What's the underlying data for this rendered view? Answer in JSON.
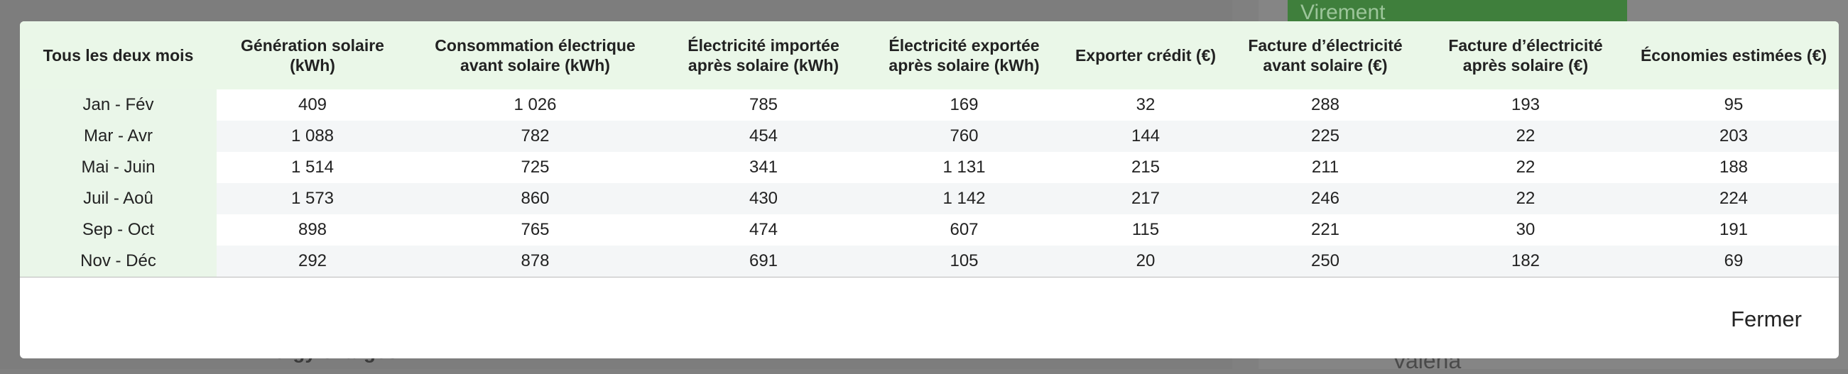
{
  "background": {
    "button": "Virement",
    "section": "Energy charges",
    "user": "Valena"
  },
  "table": {
    "header": [
      "Tous les deux mois",
      "Génération solaire (kWh)",
      "Consommation électrique avant solaire (kWh)",
      "Électricité importée après solaire (kWh)",
      "Électricité exportée après solaire (kWh)",
      "Exporter crédit (€)",
      "Facture d’électricité avant solaire (€)",
      "Facture d’électricité après solaire (€)",
      "Économies estimées (€)"
    ],
    "rows": [
      [
        "Jan - Fév",
        "409",
        "1 026",
        "785",
        "169",
        "32",
        "288",
        "193",
        "95"
      ],
      [
        "Mar - Avr",
        "1 088",
        "782",
        "454",
        "760",
        "144",
        "225",
        "22",
        "203"
      ],
      [
        "Mai - Juin",
        "1 514",
        "725",
        "341",
        "1 131",
        "215",
        "211",
        "22",
        "188"
      ],
      [
        "Juil - Aoû",
        "1 573",
        "860",
        "430",
        "1 142",
        "217",
        "246",
        "22",
        "224"
      ],
      [
        "Sep - Oct",
        "898",
        "765",
        "474",
        "607",
        "115",
        "221",
        "30",
        "191"
      ],
      [
        "Nov - Déc",
        "292",
        "878",
        "691",
        "105",
        "20",
        "250",
        "182",
        "69"
      ]
    ]
  },
  "footer": {
    "close": "Fermer"
  }
}
